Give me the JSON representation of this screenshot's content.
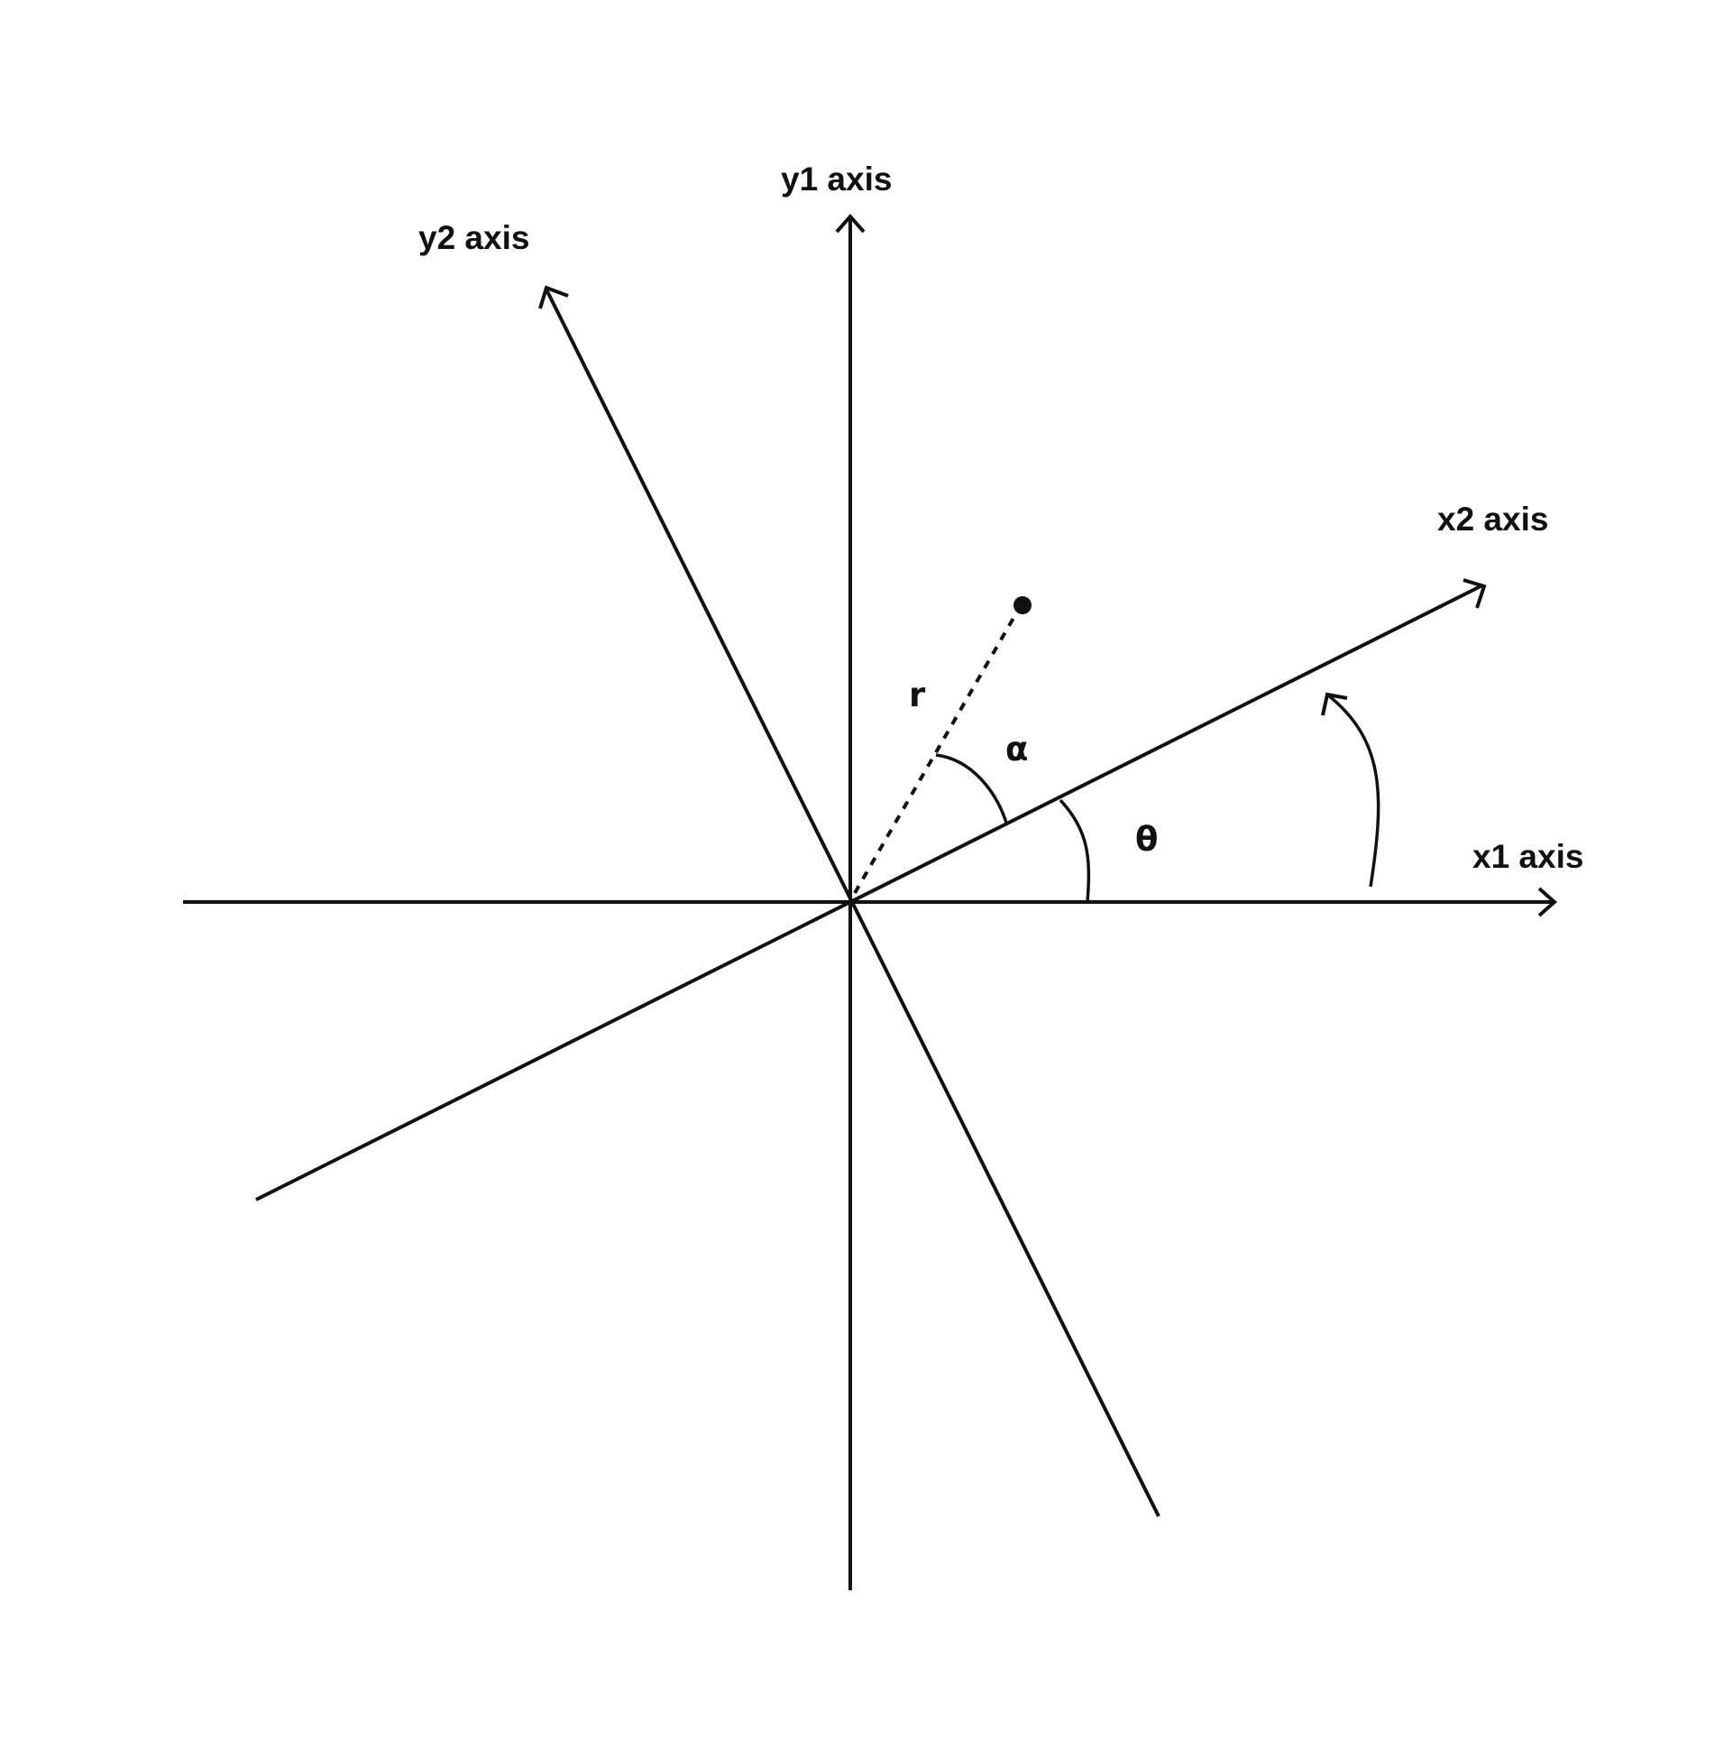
{
  "labels": {
    "y1_axis": "y1 axis",
    "y2_axis": "y2 axis",
    "x1_axis": "x1 axis",
    "x2_axis": "x2 axis",
    "radius": "r",
    "alpha": "α",
    "theta": "θ"
  },
  "colors": {
    "line": "#111111",
    "background": "#ffffff"
  }
}
